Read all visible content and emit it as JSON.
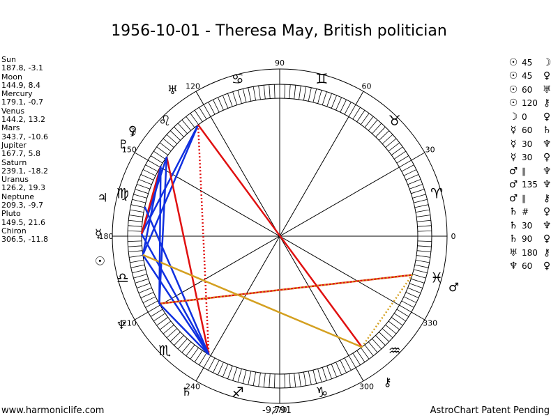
{
  "title": "1956-10-01 - Theresa May, British politician",
  "planets": [
    {
      "name": "Sun",
      "coords": "187.8, -3.1",
      "glyph": "☉",
      "color": "#000000"
    },
    {
      "name": "Moon",
      "coords": "144.9, 8.4",
      "glyph": "☽",
      "color": "#000000"
    },
    {
      "name": "Mercury",
      "coords": "179.1, -0.7",
      "glyph": "☿",
      "color": "#000000"
    },
    {
      "name": "Venus",
      "coords": "144.2, 13.2",
      "glyph": "♀",
      "color": "#000000"
    },
    {
      "name": "Mars",
      "coords": "343.7, -10.6",
      "glyph": "♂",
      "color": "#000000"
    },
    {
      "name": "Jupiter",
      "coords": "167.7, 5.8",
      "glyph": "♃",
      "color": "#000000"
    },
    {
      "name": "Saturn",
      "coords": "239.1, -18.2",
      "glyph": "♄",
      "color": "#000000"
    },
    {
      "name": "Uranus",
      "coords": "126.2, 19.3",
      "glyph": "♅",
      "color": "#000000"
    },
    {
      "name": "Neptune",
      "coords": "209.3, -9.7",
      "glyph": "♆",
      "color": "#000000"
    },
    {
      "name": "Pluto",
      "coords": "149.5, 21.6",
      "glyph": "♇",
      "color": "#000000"
    },
    {
      "name": "Chiron",
      "coords": "306.5, -11.8",
      "glyph": "⚷",
      "color": "#000000"
    }
  ],
  "planet_longitudes": {
    "sun": 187.8,
    "moon": 144.9,
    "mercury": 179.1,
    "venus": 144.2,
    "mars": 343.7,
    "jupiter": 167.7,
    "saturn": 239.1,
    "uranus": 126.2,
    "neptune": 209.3,
    "pluto": 149.5,
    "chiron": 306.5
  },
  "aspects": [
    {
      "p1": "☉",
      "label": "45",
      "p2": "☽"
    },
    {
      "p1": "☉",
      "label": "45",
      "p2": "♀"
    },
    {
      "p1": "☉",
      "label": "60",
      "p2": "♅"
    },
    {
      "p1": "☉",
      "label": "120",
      "p2": "⚷"
    },
    {
      "p1": "☽",
      "label": "0",
      "p2": "♀"
    },
    {
      "p1": "☿",
      "label": "60",
      "p2": "♄"
    },
    {
      "p1": "☿",
      "label": "30",
      "p2": "♆"
    },
    {
      "p1": "☿",
      "label": "30",
      "p2": "♀"
    },
    {
      "p1": "♂",
      "label": "∥",
      "p2": "♆"
    },
    {
      "p1": "♂",
      "label": "135",
      "p2": "♆"
    },
    {
      "p1": "♂",
      "label": "∥",
      "p2": "⚷"
    },
    {
      "p1": "♄",
      "label": "#",
      "p2": "♀"
    },
    {
      "p1": "♄",
      "label": "30",
      "p2": "♆"
    },
    {
      "p1": "♄",
      "label": "90",
      "p2": "♀"
    },
    {
      "p1": "♅",
      "label": "180",
      "p2": "⚷"
    },
    {
      "p1": "♆",
      "label": "60",
      "p2": "♀"
    }
  ],
  "aspect_lines": [
    {
      "from": "uranus",
      "to": "chiron",
      "color": "#e01010",
      "style": "solid"
    },
    {
      "from": "uranus",
      "to": "mercury",
      "color": "#1030e0",
      "style": "solid"
    },
    {
      "from": "uranus",
      "to": "sun",
      "color": "#1030e0",
      "style": "solid"
    },
    {
      "from": "uranus",
      "to": "saturn",
      "color": "#e01010",
      "style": "dotted"
    },
    {
      "from": "moon",
      "to": "saturn",
      "color": "#e01010",
      "style": "solid"
    },
    {
      "from": "moon",
      "to": "mercury",
      "color": "#1030e0",
      "style": "solid"
    },
    {
      "from": "moon",
      "to": "neptune",
      "color": "#1030e0",
      "style": "solid"
    },
    {
      "from": "pluto",
      "to": "mercury",
      "color": "#e01010",
      "style": "solid"
    },
    {
      "from": "pluto",
      "to": "sun",
      "color": "#1030e0",
      "style": "solid"
    },
    {
      "from": "mercury",
      "to": "saturn",
      "color": "#1030e0",
      "style": "solid"
    },
    {
      "from": "jupiter",
      "to": "saturn",
      "color": "#1030e0",
      "style": "solid"
    },
    {
      "from": "sun",
      "to": "saturn",
      "color": "#1030e0",
      "style": "solid"
    },
    {
      "from": "neptune",
      "to": "mars",
      "color": "#e01010",
      "style": "solid"
    },
    {
      "from": "sun",
      "to": "chiron",
      "color": "#d4a020",
      "style": "solid"
    },
    {
      "from": "chiron",
      "to": "mars",
      "color": "#d4a020",
      "style": "dotted"
    },
    {
      "from": "mars",
      "to": "neptune",
      "color": "#d4a020",
      "style": "dotted"
    },
    {
      "from": "neptune",
      "to": "saturn",
      "color": "#1030e0",
      "style": "solid"
    },
    {
      "from": "pluto",
      "to": "neptune",
      "color": "#1030e0",
      "style": "solid"
    }
  ],
  "degree_labels": [
    "0",
    "30",
    "60",
    "90",
    "120",
    "150",
    "180",
    "210",
    "240",
    "270",
    "300",
    "330"
  ],
  "zodiac_signs": [
    "♈",
    "♉",
    "♊",
    "♋",
    "♌",
    "♍",
    "♎",
    "♏",
    "♐",
    "♑",
    "♒",
    "♓"
  ],
  "footer": {
    "left": "www.harmoniclife.com",
    "center": "-9,791",
    "right": "AstroChart Patent Pending"
  }
}
